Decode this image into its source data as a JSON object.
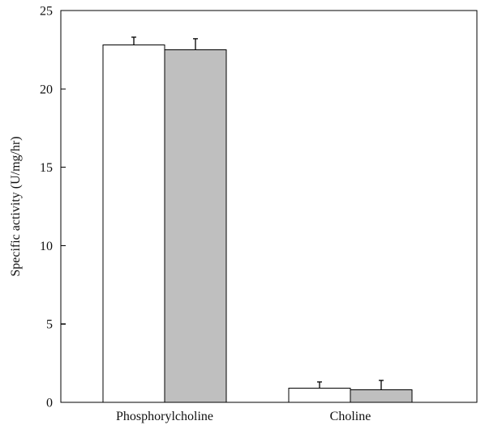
{
  "chart_data": {
    "type": "bar",
    "categories": [
      "Phosphorylcholine",
      "Choline"
    ],
    "series": [
      {
        "values": [
          22.8,
          0.9
        ],
        "errors": [
          0.5,
          0.4
        ],
        "color": "#ffffff"
      },
      {
        "values": [
          22.5,
          0.8
        ],
        "errors": [
          0.7,
          0.6
        ],
        "color": "#bfbfbf"
      }
    ],
    "ylabel": "Specific activity (U/mg/hr)",
    "xlabel": "",
    "title": "",
    "ylim": [
      0,
      25
    ],
    "yticks": [
      0,
      5,
      10,
      15,
      20,
      25
    ],
    "grid": false
  }
}
